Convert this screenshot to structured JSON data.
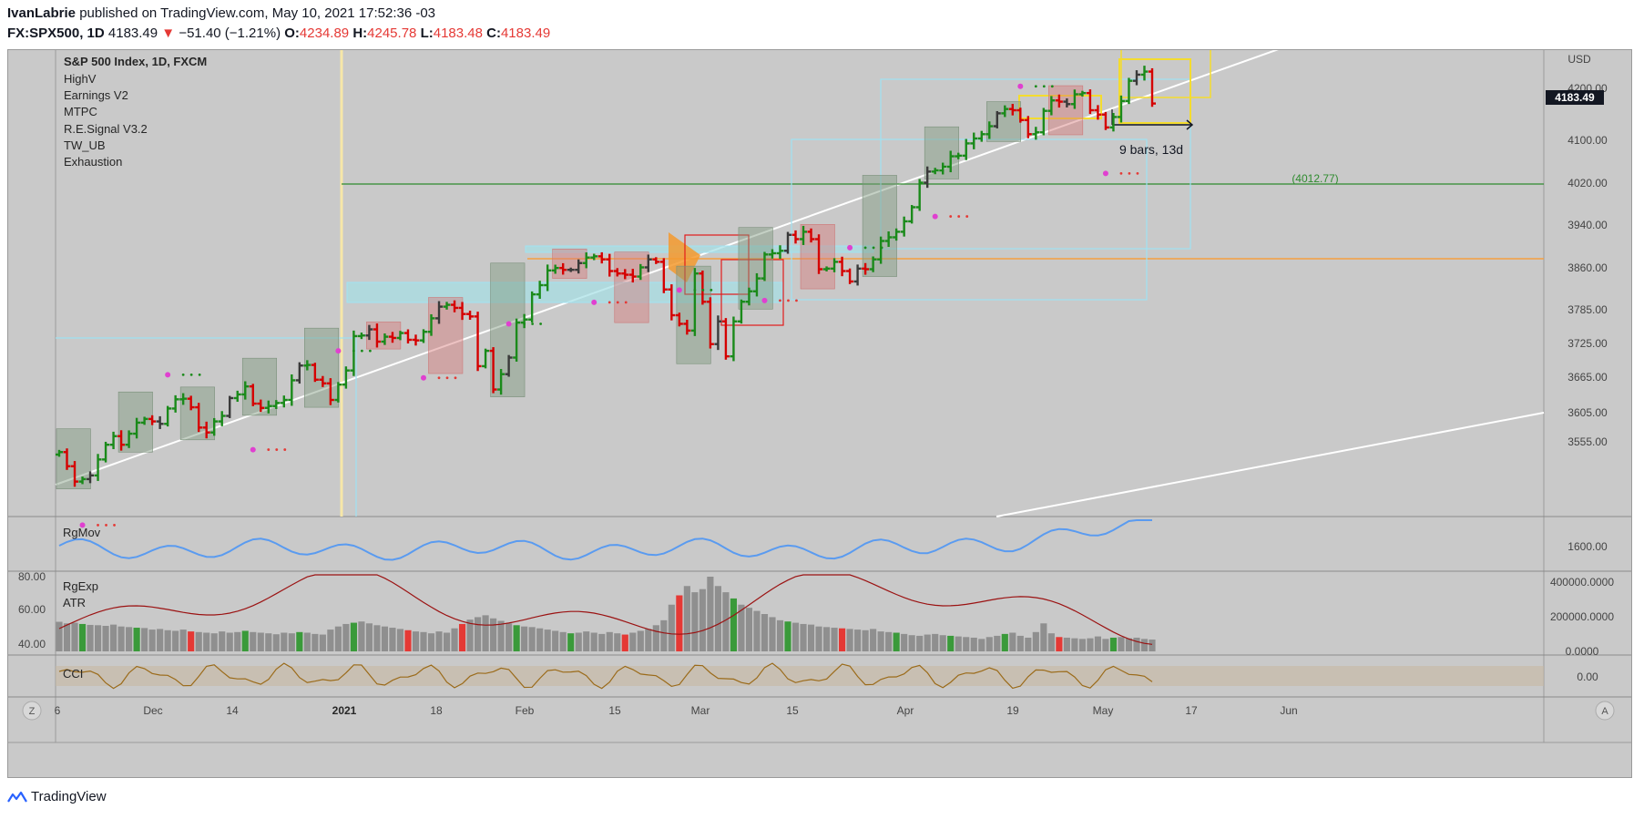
{
  "header": {
    "author": "IvanLabrie",
    "published_text": "published on TradingView.com, May 10, 2021 17:52:36 -03",
    "symbol": "FX:SPX500, 1D",
    "last": "4183.49",
    "change": "−51.40 (−1.21%)",
    "o_label": "O:",
    "o": "4234.89",
    "h_label": "H:",
    "h": "4245.78",
    "l_label": "L:",
    "l": "4183.48",
    "c_label": "C:",
    "c": "4183.49"
  },
  "legend": {
    "title": "S&P 500 Index, 1D, FXCM",
    "indicators": [
      "HighV",
      "Earnings V2",
      "MTPC",
      "R.E.Signal V3.2",
      "TW_UB",
      "Exhaustion"
    ]
  },
  "currency": "USD",
  "price_axis_labels": [
    "4200.00",
    "4100.00",
    "4020.00",
    "3940.00",
    "3860.00",
    "3785.00",
    "3725.00",
    "3665.00",
    "3605.00",
    "3555.00"
  ],
  "current_price_label": "4183.49",
  "green_level_label": "(4012.77)",
  "measure_label": "9 bars, 13d",
  "time_axis_labels": [
    "6",
    "Dec",
    "14",
    "2021",
    "18",
    "Feb",
    "15",
    "Mar",
    "15",
    "Apr",
    "19",
    "May",
    "17",
    "Jun"
  ],
  "panes": {
    "rgmov": {
      "title": "RgMov",
      "axis_label": "1600.00"
    },
    "volume": {
      "title1": "RgExp",
      "title2": "ATR",
      "left_axis": [
        "80.00",
        "60.00",
        "40.00"
      ],
      "right_axis": [
        "400000.0000",
        "200000.0000",
        "0.0000"
      ]
    },
    "cci": {
      "title": "CCI",
      "axis_label": "0.00"
    }
  },
  "axis_buttons": {
    "left": "Z",
    "right": "A"
  },
  "footer": {
    "brand": "TradingView"
  },
  "colors": {
    "up": "#1a8a1a",
    "down": "#d50000",
    "neutral": "#3a3a3a",
    "bg": "#c9c9c9",
    "rgmov": "#5a9bf0",
    "atr": "#9b1212",
    "cci": "#9b6b1a",
    "last_price": "#131722"
  },
  "chart_data": {
    "type": "ohlc",
    "title": "S&P 500 Index, 1D, FXCM",
    "ylim": [
      3510,
      4270
    ],
    "price_series": [
      3615,
      3592,
      3567,
      3571,
      3577,
      3603,
      3627,
      3641,
      3627,
      3645,
      3663,
      3669,
      3665,
      3661,
      3686,
      3701,
      3702,
      3688,
      3655,
      3647,
      3665,
      3674,
      3703,
      3709,
      3722,
      3694,
      3687,
      3690,
      3695,
      3700,
      3732,
      3756,
      3757,
      3733,
      3727,
      3700,
      3725,
      3748,
      3804,
      3805,
      3815,
      3795,
      3803,
      3801,
      3809,
      3798,
      3797,
      3811,
      3833,
      3852,
      3855,
      3850,
      3840,
      3836,
      3755,
      3780,
      3717,
      3742,
      3769,
      3826,
      3831,
      3872,
      3887,
      3911,
      3915,
      3912,
      3912,
      3923,
      3932,
      3934,
      3929,
      3910,
      3906,
      3904,
      3901,
      3916,
      3929,
      3925,
      3880,
      3838,
      3824,
      3813,
      3906,
      3860,
      3791,
      3828,
      3771,
      3828,
      3860,
      3877,
      3898,
      3937,
      3939,
      3943,
      3969,
      3962,
      3974,
      3962,
      3913,
      3914,
      3925,
      3910,
      3893,
      3914,
      3913,
      3929,
      3959,
      3965,
      3974,
      3991,
      4014,
      4054,
      4072,
      4074,
      4080,
      4097,
      4098,
      4118,
      4126,
      4133,
      4146,
      4167,
      4174,
      4172,
      4156,
      4133,
      4136,
      4171,
      4188,
      4186,
      4182,
      4198,
      4200,
      4172,
      4165,
      4144,
      4161,
      4187,
      4220,
      4230,
      4235,
      4183
    ],
    "volume": [
      95,
      90,
      92,
      88,
      85,
      84,
      82,
      86,
      80,
      78,
      76,
      75,
      70,
      72,
      68,
      66,
      70,
      64,
      62,
      60,
      58,
      64,
      60,
      62,
      66,
      62,
      60,
      58,
      55,
      60,
      58,
      62,
      60,
      56,
      54,
      70,
      80,
      88,
      92,
      96,
      90,
      84,
      80,
      76,
      72,
      68,
      64,
      62,
      58,
      64,
      60,
      74,
      88,
      102,
      110,
      116,
      106,
      98,
      90,
      84,
      80,
      78,
      74,
      70,
      66,
      62,
      58,
      60,
      64,
      60,
      56,
      62,
      58,
      54,
      60,
      66,
      72,
      84,
      100,
      150,
      180,
      210,
      190,
      200,
      240,
      210,
      190,
      170,
      150,
      140,
      130,
      120,
      110,
      100,
      96,
      92,
      88,
      86,
      80,
      78,
      76,
      74,
      72,
      70,
      68,
      72,
      64,
      62,
      60,
      56,
      52,
      50,
      54,
      56,
      52,
      50,
      48,
      46,
      44,
      40,
      46,
      50,
      56,
      60,
      50,
      44,
      62,
      90,
      58,
      46,
      44,
      42,
      40,
      42,
      48,
      40,
      44,
      46,
      42,
      44,
      40,
      38
    ]
  }
}
